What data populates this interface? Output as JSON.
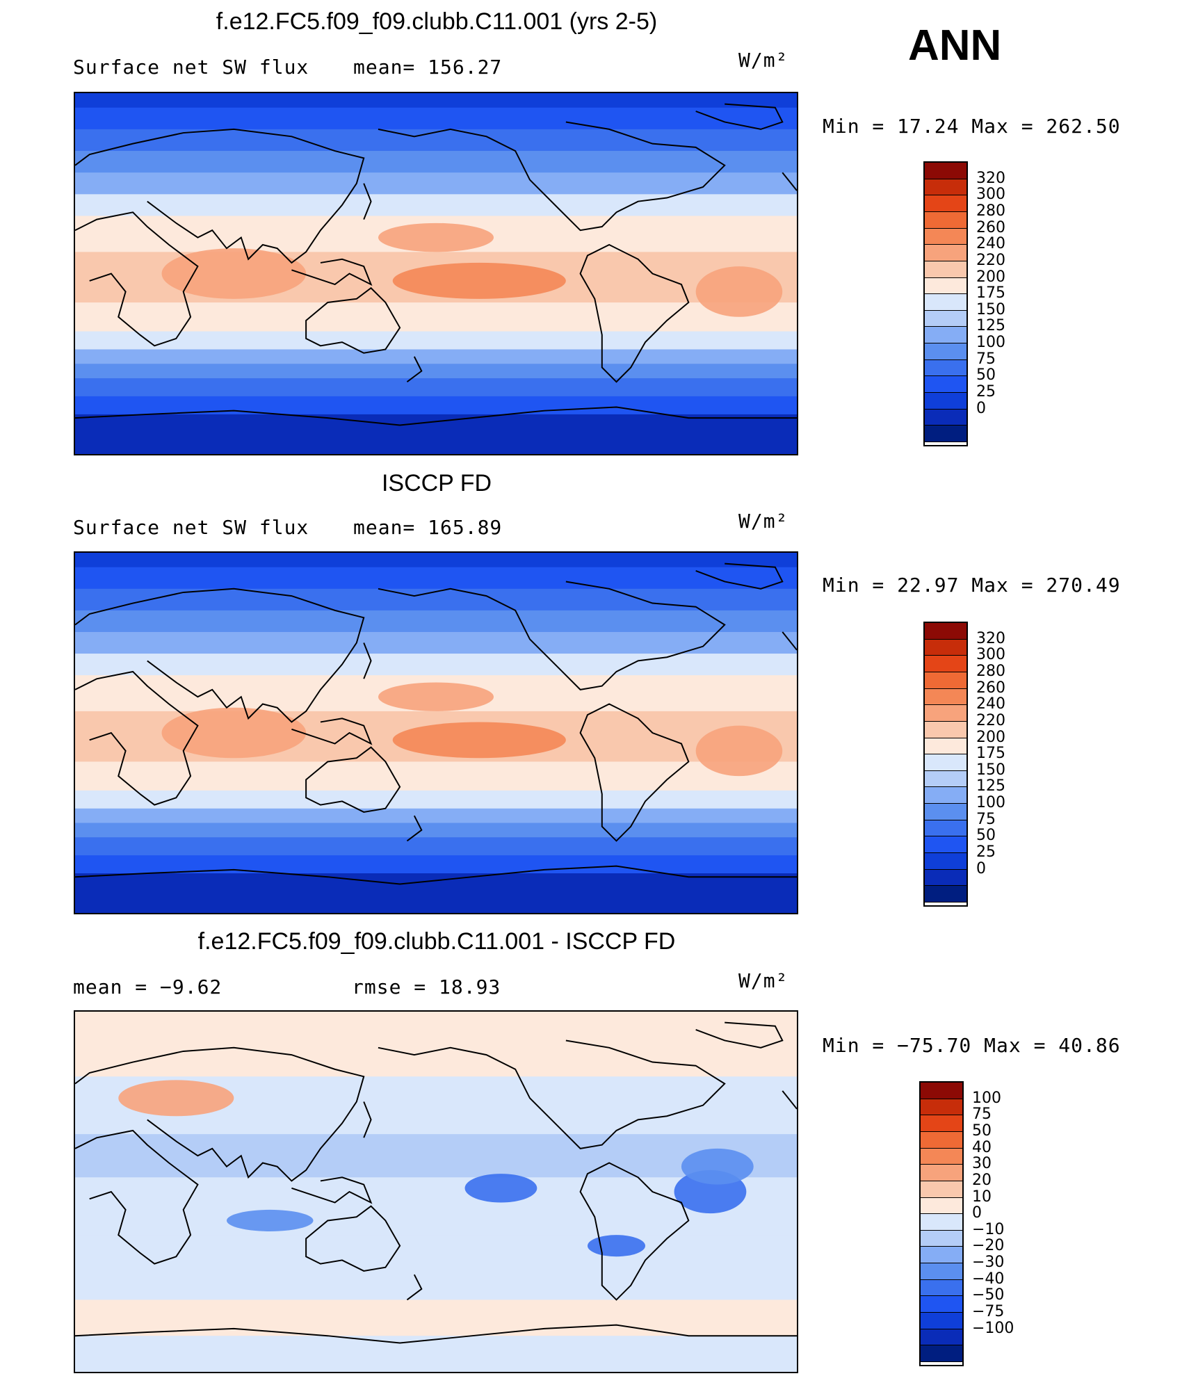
{
  "season": "ANN",
  "colors": {
    "abs": [
      "#001e80",
      "#0a2cb8",
      "#0f3fd9",
      "#1f55f2",
      "#3a70ee",
      "#5b8fef",
      "#85adf5",
      "#b4cdf7",
      "#d9e7fb",
      "#fde9dc",
      "#f9c8ad",
      "#f7a37c",
      "#f48756",
      "#ef6a35",
      "#e44517",
      "#c72d0a",
      "#8c0a05"
    ],
    "diff": [
      "#001e80",
      "#0a2cb8",
      "#0f3fd9",
      "#1f55f2",
      "#3a70ee",
      "#5b8fef",
      "#85adf5",
      "#b4cdf7",
      "#d9e7fb",
      "#fde9dc",
      "#f9c8ad",
      "#f7a37c",
      "#f48756",
      "#ef6a35",
      "#e44517",
      "#c72d0a",
      "#8c0a05"
    ]
  },
  "chart_data": [
    {
      "type": "contour-map",
      "title": "f.e12.FC5.f09_f09.clubb.C11.001 (yrs 2-5)",
      "variable": "Surface net SW flux",
      "stat1": "mean=  156.27",
      "units": "W/m²",
      "minmax": "Min  =    17.24  Max  =  262.50",
      "mean": 156.27,
      "min": 17.24,
      "max": 262.5,
      "levels": [
        "320",
        "300",
        "280",
        "260",
        "240",
        "220",
        "200",
        "175",
        "150",
        "125",
        "100",
        "75",
        "50",
        "25",
        "0"
      ]
    },
    {
      "type": "contour-map",
      "title": "ISCCP FD",
      "variable": "Surface net SW flux",
      "stat1": "mean=  165.89",
      "units": "W/m²",
      "minmax": "Min  =    22.97  Max  =  270.49",
      "mean": 165.89,
      "min": 22.97,
      "max": 270.49,
      "levels": [
        "320",
        "300",
        "280",
        "260",
        "240",
        "220",
        "200",
        "175",
        "150",
        "125",
        "100",
        "75",
        "50",
        "25",
        "0"
      ]
    },
    {
      "type": "contour-map",
      "title": "f.e12.FC5.f09_f09.clubb.C11.001 - ISCCP FD",
      "variable": "mean  =    −9.62",
      "stat1": "rmse  =    18.93",
      "units": "W/m²",
      "minmax": "Min  =  −75.70  Max  =    40.86",
      "mean": -9.62,
      "rmse": 18.93,
      "min": -75.7,
      "max": 40.86,
      "levels": [
        "100",
        "75",
        "50",
        "40",
        "30",
        "20",
        "10",
        "0",
        "−10",
        "−20",
        "−30",
        "−40",
        "−50",
        "−75",
        "−100"
      ]
    }
  ]
}
